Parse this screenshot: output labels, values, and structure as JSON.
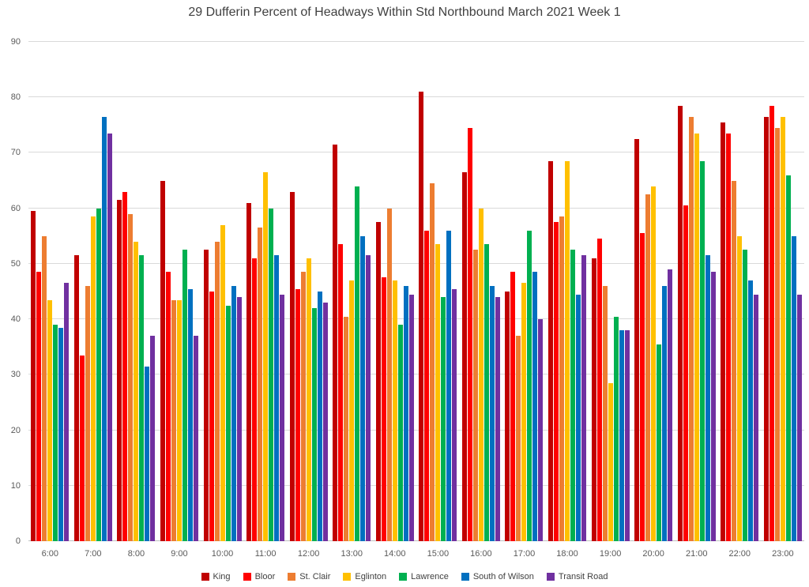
{
  "chart_data": {
    "type": "bar",
    "title": "29 Dufferin  Percent of Headways Within Std Northbound March 2021 Week 1",
    "xlabel": "",
    "ylabel": "",
    "ylim": [
      0,
      90
    ],
    "ytick_step": 10,
    "grid": "horizontal",
    "legend_position": "bottom",
    "categories": [
      "6:00",
      "7:00",
      "8:00",
      "9:00",
      "10:00",
      "11:00",
      "12:00",
      "13:00",
      "14:00",
      "15:00",
      "16:00",
      "17:00",
      "18:00",
      "19:00",
      "20:00",
      "21:00",
      "22:00",
      "23:00"
    ],
    "series": [
      {
        "name": "King",
        "color": "#C00000",
        "values": [
          59.5,
          51.5,
          61.5,
          65,
          52.5,
          61,
          63,
          71.5,
          57.5,
          81,
          66.5,
          45,
          68.5,
          51,
          72.5,
          78.5,
          75.5,
          76.5
        ]
      },
      {
        "name": "Bloor",
        "color": "#FF0000",
        "values": [
          48.5,
          33.5,
          63,
          48.5,
          45,
          51,
          45.5,
          53.5,
          47.5,
          56,
          74.5,
          48.5,
          57.5,
          54.5,
          55.5,
          60.5,
          73.5,
          78.5
        ]
      },
      {
        "name": "St. Clair",
        "color": "#ED7D31",
        "values": [
          55,
          46,
          59,
          43.5,
          54,
          56.5,
          48.5,
          40.5,
          60,
          64.5,
          52.5,
          37,
          58.5,
          46,
          62.5,
          76.5,
          65,
          74.5
        ]
      },
      {
        "name": "Eglinton",
        "color": "#FFC000",
        "values": [
          43.5,
          58.5,
          54,
          43.5,
          57,
          66.5,
          51,
          47,
          47,
          53.5,
          60,
          46.5,
          68.5,
          28.5,
          64,
          73.5,
          55,
          76.5
        ]
      },
      {
        "name": "Lawrence",
        "color": "#00B050",
        "values": [
          39,
          60,
          51.5,
          52.5,
          42.5,
          60,
          42,
          64,
          39,
          44,
          53.5,
          56,
          52.5,
          40.5,
          35.5,
          68.5,
          52.5,
          66
        ]
      },
      {
        "name": "South of Wilson",
        "color": "#0070C0",
        "values": [
          38.5,
          76.5,
          31.5,
          45.5,
          46,
          51.5,
          45,
          55,
          46,
          56,
          46,
          48.5,
          44.5,
          38,
          46,
          51.5,
          47,
          55
        ]
      },
      {
        "name": "Transit Road",
        "color": "#7030A0",
        "values": [
          46.5,
          73.5,
          37,
          37,
          44,
          44.5,
          43,
          51.5,
          44.5,
          45.5,
          44,
          40,
          51.5,
          38,
          49,
          48.5,
          44.5,
          44.5
        ]
      }
    ]
  }
}
